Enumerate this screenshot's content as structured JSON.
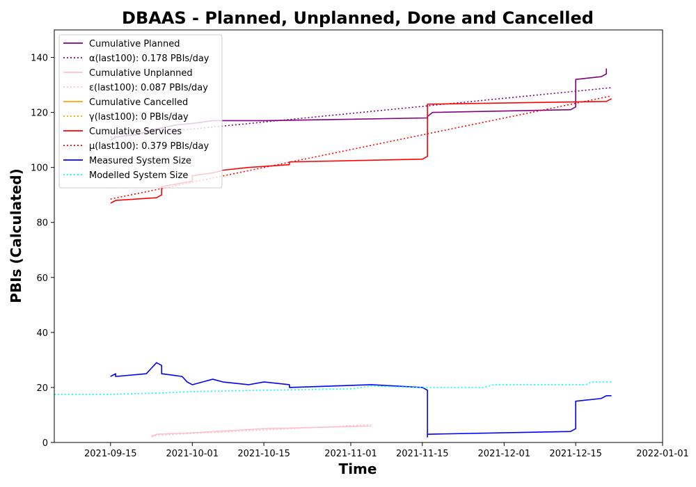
{
  "chart_data": {
    "type": "line",
    "title": "DBAAS - Planned, Unplanned, Done  and Cancelled",
    "xlabel": "Time",
    "ylabel": "PBIs (Calculated)",
    "xlim": [
      "2021-09-04",
      "2022-01-01"
    ],
    "ylim": [
      0,
      150
    ],
    "x_ticks": [
      "2021-09-15",
      "2021-10-01",
      "2021-10-15",
      "2021-11-01",
      "2021-11-15",
      "2021-12-01",
      "2021-12-15",
      "2022-01-01"
    ],
    "y_ticks": [
      0,
      20,
      40,
      60,
      80,
      100,
      120,
      140
    ],
    "grid": false,
    "legend_position": "top-left",
    "series": [
      {
        "name": "Cumulative Planned",
        "color": "#800080",
        "style": "solid",
        "points": [
          [
            "2021-09-15",
            110
          ],
          [
            "2021-09-16",
            111
          ],
          [
            "2021-09-20",
            112
          ],
          [
            "2021-09-24",
            114
          ],
          [
            "2021-09-28",
            115.5
          ],
          [
            "2021-10-01",
            116
          ],
          [
            "2021-10-03",
            116.5
          ],
          [
            "2021-10-05",
            117
          ],
          [
            "2021-10-15",
            117
          ],
          [
            "2021-11-16",
            118
          ],
          [
            "2021-11-16",
            118.5
          ],
          [
            "2021-11-17",
            120
          ],
          [
            "2021-12-14",
            121
          ],
          [
            "2021-12-15",
            122
          ],
          [
            "2021-12-15",
            132
          ],
          [
            "2021-12-20",
            133
          ],
          [
            "2021-12-21",
            134
          ],
          [
            "2021-12-21",
            136
          ]
        ]
      },
      {
        "name": "α(last100): 0.178 PBIs/day",
        "color": "#800080",
        "style": "dotted",
        "points": [
          [
            "2021-09-15",
            111
          ],
          [
            "2021-12-22",
            129
          ]
        ]
      },
      {
        "name": "Cumulative Unplanned",
        "color": "#ffc0cb",
        "style": "solid",
        "points": [
          [
            "2021-09-23",
            2
          ],
          [
            "2021-09-24",
            3
          ],
          [
            "2021-10-01",
            3.5
          ],
          [
            "2021-10-15",
            5
          ],
          [
            "2021-11-05",
            6
          ]
        ]
      },
      {
        "name": "ε(last100): 0.087 PBIs/day",
        "color": "#ffc0cb",
        "style": "dotted",
        "points": [
          [
            "2021-09-23",
            2.5
          ],
          [
            "2021-11-05",
            6.5
          ]
        ]
      },
      {
        "name": "Cumulative Cancelled",
        "color": "#ffa500",
        "style": "solid",
        "points": []
      },
      {
        "name": "γ(last100): 0 PBIs/day",
        "color": "#ffa500",
        "style": "dotted",
        "points": []
      },
      {
        "name": "Cumulative Services",
        "color": "#ff0000",
        "style": "solid",
        "points": [
          [
            "2021-09-15",
            87
          ],
          [
            "2021-09-16",
            88
          ],
          [
            "2021-09-24",
            89
          ],
          [
            "2021-09-25",
            90
          ],
          [
            "2021-09-25",
            93
          ],
          [
            "2021-10-01",
            95
          ],
          [
            "2021-10-01",
            97
          ],
          [
            "2021-10-05",
            98
          ],
          [
            "2021-10-07",
            99
          ],
          [
            "2021-10-12",
            100
          ],
          [
            "2021-10-20",
            101
          ],
          [
            "2021-10-20",
            102
          ],
          [
            "2021-11-15",
            103
          ],
          [
            "2021-11-16",
            104
          ],
          [
            "2021-11-16",
            120
          ],
          [
            "2021-11-16",
            123
          ],
          [
            "2021-12-21",
            124
          ],
          [
            "2021-12-22",
            125
          ]
        ]
      },
      {
        "name": "μ(last100): 0.379 PBIs/day",
        "color": "#ff0000",
        "style": "dotted",
        "points": [
          [
            "2021-09-15",
            88.5
          ],
          [
            "2021-12-22",
            126
          ]
        ]
      },
      {
        "name": "Measured System Size",
        "color": "#0000ff",
        "style": "solid",
        "points": [
          [
            "2021-09-15",
            24
          ],
          [
            "2021-09-16",
            25
          ],
          [
            "2021-09-16",
            24
          ],
          [
            "2021-09-22",
            25
          ],
          [
            "2021-09-23",
            27
          ],
          [
            "2021-09-24",
            29
          ],
          [
            "2021-09-25",
            28
          ],
          [
            "2021-09-25",
            25
          ],
          [
            "2021-09-29",
            24
          ],
          [
            "2021-09-30",
            22
          ],
          [
            "2021-10-01",
            21
          ],
          [
            "2021-10-03",
            22
          ],
          [
            "2021-10-05",
            23
          ],
          [
            "2021-10-07",
            22
          ],
          [
            "2021-10-12",
            21
          ],
          [
            "2021-10-15",
            22
          ],
          [
            "2021-10-20",
            21
          ],
          [
            "2021-10-20",
            20
          ],
          [
            "2021-11-05",
            21
          ],
          [
            "2021-11-15",
            20
          ],
          [
            "2021-11-16",
            19
          ],
          [
            "2021-11-16",
            2
          ],
          [
            "2021-11-16",
            3
          ],
          [
            "2021-12-14",
            4
          ],
          [
            "2021-12-15",
            5
          ],
          [
            "2021-12-15",
            15
          ],
          [
            "2021-12-20",
            16
          ],
          [
            "2021-12-21",
            17
          ],
          [
            "2021-12-22",
            17
          ]
        ]
      },
      {
        "name": "Modelled System Size",
        "color": "#00ffff",
        "style": "dotted",
        "points": [
          [
            "2021-09-04",
            17.5
          ],
          [
            "2021-09-15",
            17.5
          ],
          [
            "2021-09-25",
            18
          ],
          [
            "2021-10-01",
            18.5
          ],
          [
            "2021-10-15",
            19
          ],
          [
            "2021-11-01",
            19.5
          ],
          [
            "2021-11-05",
            20.5
          ],
          [
            "2021-11-15",
            20
          ],
          [
            "2021-11-27",
            20
          ],
          [
            "2021-11-29",
            21
          ],
          [
            "2021-12-17",
            21
          ],
          [
            "2021-12-18",
            22
          ],
          [
            "2021-12-22",
            22
          ]
        ]
      }
    ]
  }
}
